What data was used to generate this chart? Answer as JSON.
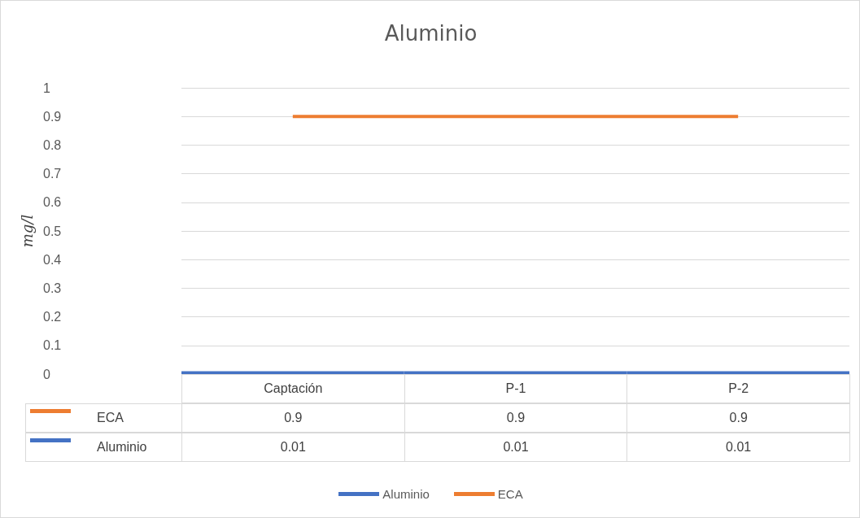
{
  "chart_data": {
    "type": "line",
    "title": "Aluminio",
    "ylabel": "mg/l",
    "categories": [
      "Captación",
      "P-1",
      "P-2"
    ],
    "series": [
      {
        "name": "Aluminio",
        "type": "bar",
        "color": "#4472c4",
        "values": [
          0.01,
          0.01,
          0.01
        ]
      },
      {
        "name": "ECA",
        "color": "#ed7d31",
        "values": [
          0.9,
          0.9,
          0.9
        ]
      }
    ],
    "ylim": [
      0,
      1
    ],
    "yticks": [
      0,
      0.1,
      0.2,
      0.3,
      0.4,
      0.5,
      0.6,
      0.7,
      0.8,
      0.9,
      1
    ],
    "grid": "y",
    "legend": "bottom",
    "data_labels": true,
    "marker": "none"
  }
}
